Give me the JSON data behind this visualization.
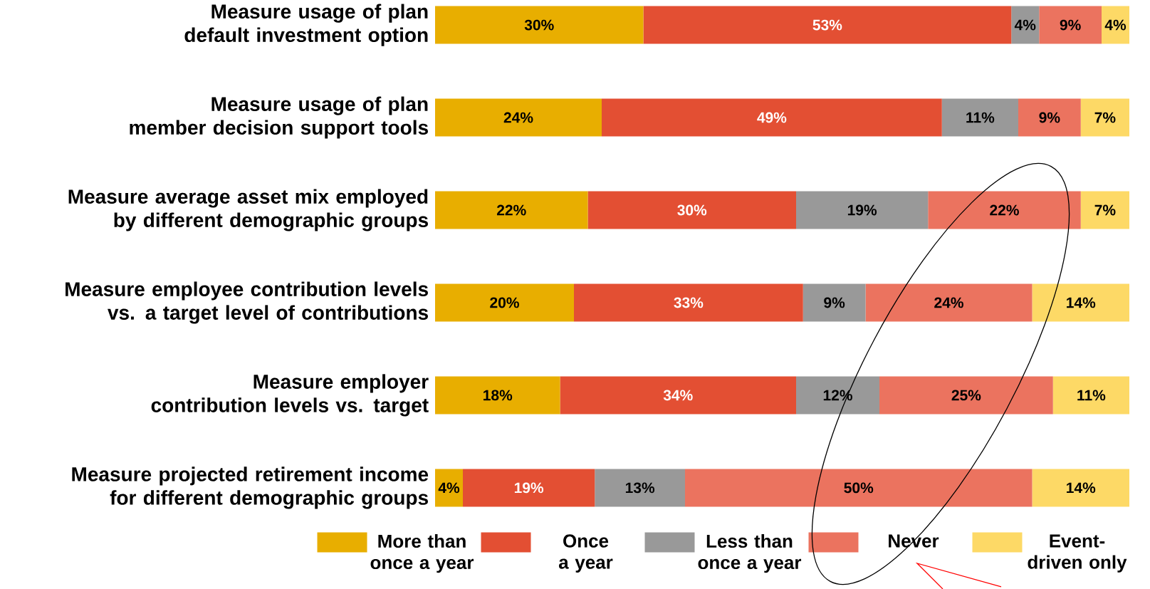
{
  "chart_data": {
    "type": "bar",
    "orientation": "horizontal",
    "stacked": true,
    "legend": "bottom",
    "categories": [
      "Measure usage of plan default investment option",
      "Measure usage of plan member decision support tools",
      "Measure average asset mix employed by different demographic groups",
      "Measure employee contribution levels vs. a target level of contributions",
      "Measure employer contribution levels vs. target",
      "Measure projected retirement income for different demographic groups"
    ],
    "series": [
      {
        "name": "More than once a year",
        "color": "#e8ae00",
        "values": [
          30,
          24,
          22,
          20,
          18,
          4
        ],
        "value_labels": [
          "30%",
          "24%",
          "22%",
          "20%",
          "18%",
          "4%"
        ]
      },
      {
        "name": "Once a year",
        "color": "#e34f33",
        "values": [
          53,
          49,
          30,
          33,
          34,
          19
        ],
        "value_labels": [
          "53%",
          "49%",
          "30%",
          "33%",
          "34%",
          "19%"
        ]
      },
      {
        "name": "Less than once a year",
        "color": "#999999",
        "values": [
          4,
          11,
          19,
          9,
          12,
          13
        ],
        "value_labels": [
          "4%",
          "11%",
          "19%",
          "9%",
          "12%",
          "13%"
        ]
      },
      {
        "name": "Never",
        "color": "#eb735f",
        "values": [
          9,
          9,
          22,
          24,
          25,
          50
        ],
        "value_labels": [
          "9%",
          "9%",
          "22%",
          "24%",
          "25%",
          "50%"
        ]
      },
      {
        "name": "Event-driven only",
        "color": "#fdd966",
        "values": [
          4,
          7,
          7,
          14,
          11,
          14
        ],
        "value_labels": [
          "4%",
          "7%",
          "7%",
          "14%",
          "11%",
          "14%"
        ]
      }
    ]
  }
}
